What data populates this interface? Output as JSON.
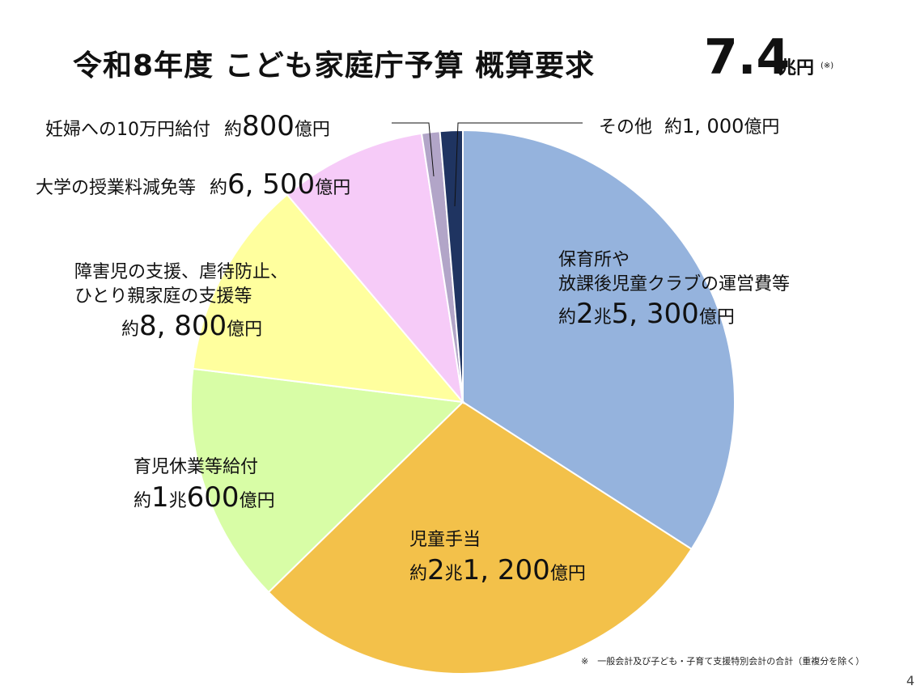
{
  "title": {
    "main": "令和8年度 こども家庭庁予算 概算要求",
    "total_value": "7.4",
    "total_unit": "兆円",
    "note_mark": "(※)"
  },
  "chart_data": {
    "type": "pie",
    "title": "令和8年度 こども家庭庁予算 概算要求 7.4兆円",
    "unit": "億円",
    "start": "12 o'clock, clockwise",
    "slices": [
      {
        "label": "保育所や放課後児童クラブの運営費等",
        "value": 25300,
        "color": "#95b3dd"
      },
      {
        "label": "児童手当",
        "value": 21200,
        "color": "#f3c14a"
      },
      {
        "label": "育児休業等給付",
        "value": 10600,
        "color": "#d8fda6"
      },
      {
        "label": "障害児の支援、虐待防止、ひとり親家庭の支援等",
        "value": 8800,
        "color": "#ffff9e"
      },
      {
        "label": "大学の授業料減免等",
        "value": 6500,
        "color": "#f6cbf8"
      },
      {
        "label": "妊婦への10万円給付",
        "value": 800,
        "color": "#b2a5c8"
      },
      {
        "label": "その他",
        "value": 1000,
        "color": "#1f3461"
      }
    ]
  },
  "labels": {
    "hoiku": {
      "line1": "保育所や",
      "line2": "放課後児童クラブの運営費等",
      "pre": "約",
      "n1": "2",
      "cho": "兆",
      "n2": "5, 300",
      "unit": "億円"
    },
    "jido": {
      "line1": "児童手当",
      "pre": "約",
      "n1": "2",
      "cho": "兆",
      "n2": "1, 200",
      "unit": "億円"
    },
    "ikuji": {
      "line1": "育児休業等給付",
      "pre": "約",
      "n1": "1",
      "cho": "兆",
      "n2": "600",
      "unit": "億円"
    },
    "shogai": {
      "line1": "障害児の支援、虐待防止、",
      "line2": "ひとり親家庭の支援等",
      "pre": "約",
      "n2": "8, 800",
      "unit": "億円"
    },
    "daigaku": {
      "line1": "大学の授業料減免等",
      "pre": "約",
      "n2": "6, 500",
      "unit": "億円"
    },
    "ninpu": {
      "line1": "妊婦への10万円給付",
      "pre": "約",
      "n2": "800",
      "unit": "億円"
    },
    "sonota": {
      "line1": "その他",
      "pre": "約",
      "n2": "1, 000",
      "unit": "億円"
    }
  },
  "footnote": "※　一般会計及び子ども・子育て支援特別会計の合計（重複分を除く）",
  "page_number": "4"
}
